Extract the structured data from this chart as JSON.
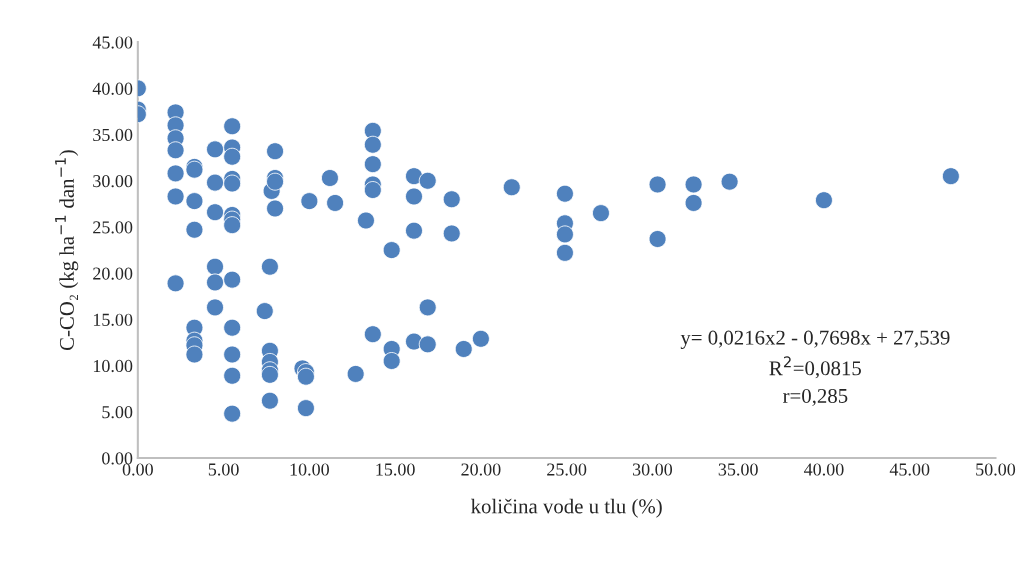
{
  "chart_data": {
    "type": "scatter",
    "xlabel": "količina vode u tlu (%)",
    "ylabel": "C-CO₂ (kg ha$^{−1}$ dan$^{−1}$)",
    "series": [
      {
        "color": "#4f81bd",
        "x": [
          0,
          0,
          0,
          2.2,
          2.2,
          2.2,
          2.2,
          2.2,
          2.2,
          2.2,
          3.3,
          3.3,
          3.3,
          3.3,
          3.3,
          3.3,
          3.3,
          3.3,
          4.5,
          4.5,
          4.5,
          4.5,
          4.5,
          4.5,
          5.5,
          5.5,
          5.5,
          5.5,
          5.5,
          5.5,
          5.5,
          5.5,
          5.5,
          5.5,
          5.5,
          5.5,
          5.5,
          7.4,
          7.7,
          7.7,
          7.7,
          7.7,
          7.7,
          7.7,
          7.8,
          8.0,
          8.0,
          8.0,
          8.0,
          9.6,
          9.8,
          9.8,
          9.8,
          10.0,
          11.2,
          11.5,
          12.7,
          13.3,
          13.7,
          13.7,
          13.7,
          13.7,
          13.7,
          13.7,
          14.8,
          14.8,
          14.8,
          16.1,
          16.1,
          16.1,
          16.1,
          16.9,
          16.9,
          16.9,
          18.3,
          18.3,
          19.0,
          20.0,
          21.8,
          24.9,
          24.9,
          24.9,
          24.9,
          27.0,
          30.3,
          30.3,
          32.4,
          32.4,
          34.5,
          40.0,
          47.4
        ],
        "values": [
          40.0,
          37.7,
          37.2,
          37.4,
          36.0,
          34.6,
          33.3,
          30.8,
          28.3,
          18.9,
          31.5,
          31.2,
          27.8,
          24.7,
          14.1,
          12.7,
          12.2,
          11.2,
          33.4,
          29.8,
          26.6,
          20.7,
          19.0,
          16.3,
          35.9,
          33.6,
          32.6,
          30.2,
          29.7,
          26.3,
          25.8,
          25.2,
          19.3,
          14.1,
          11.2,
          8.9,
          4.8,
          15.9,
          20.7,
          11.6,
          10.4,
          9.5,
          9.0,
          6.2,
          28.9,
          33.2,
          30.3,
          29.9,
          27.0,
          9.7,
          9.3,
          8.8,
          5.4,
          27.8,
          30.3,
          27.6,
          9.1,
          25.7,
          35.4,
          33.9,
          31.8,
          29.6,
          29.0,
          13.4,
          22.5,
          11.8,
          10.5,
          30.5,
          28.3,
          24.6,
          12.6,
          30.0,
          16.3,
          12.3,
          28.0,
          24.3,
          11.8,
          12.9,
          29.3,
          28.6,
          25.4,
          24.2,
          22.2,
          26.5,
          29.6,
          23.7,
          29.6,
          27.6,
          29.9,
          27.9,
          30.5
        ]
      }
    ],
    "xlim": [
      0,
      50
    ],
    "ylim": [
      0,
      45
    ],
    "xticks": [
      {
        "value": 0,
        "label": "0.00"
      },
      {
        "value": 5,
        "label": "5.00"
      },
      {
        "value": 10,
        "label": "10.00"
      },
      {
        "value": 15,
        "label": "15.00"
      },
      {
        "value": 20,
        "label": "20.00"
      },
      {
        "value": 25,
        "label": "25.00"
      },
      {
        "value": 30,
        "label": "30.00"
      },
      {
        "value": 35,
        "label": "35.00"
      },
      {
        "value": 40,
        "label": "40.00"
      },
      {
        "value": 45,
        "label": "45.00"
      },
      {
        "value": 50,
        "label": "50.00"
      }
    ],
    "yticks": [
      {
        "value": 0,
        "label": "0.00"
      },
      {
        "value": 5,
        "label": "5.00"
      },
      {
        "value": 10,
        "label": "10.00"
      },
      {
        "value": 15,
        "label": "15.00"
      },
      {
        "value": 20,
        "label": "20.00"
      },
      {
        "value": 25,
        "label": "25.00"
      },
      {
        "value": 30,
        "label": "30.00"
      },
      {
        "value": 35,
        "label": "35.00"
      },
      {
        "value": 40,
        "label": "40.00"
      },
      {
        "value": 45,
        "label": "45.00"
      }
    ],
    "annotations": [
      "y= 0,0216x2 - 0,7698x + 27,539",
      "R$^{2}$=0,0815",
      "r=0,285"
    ],
    "marker": "circle",
    "grid": false,
    "legend": false
  }
}
